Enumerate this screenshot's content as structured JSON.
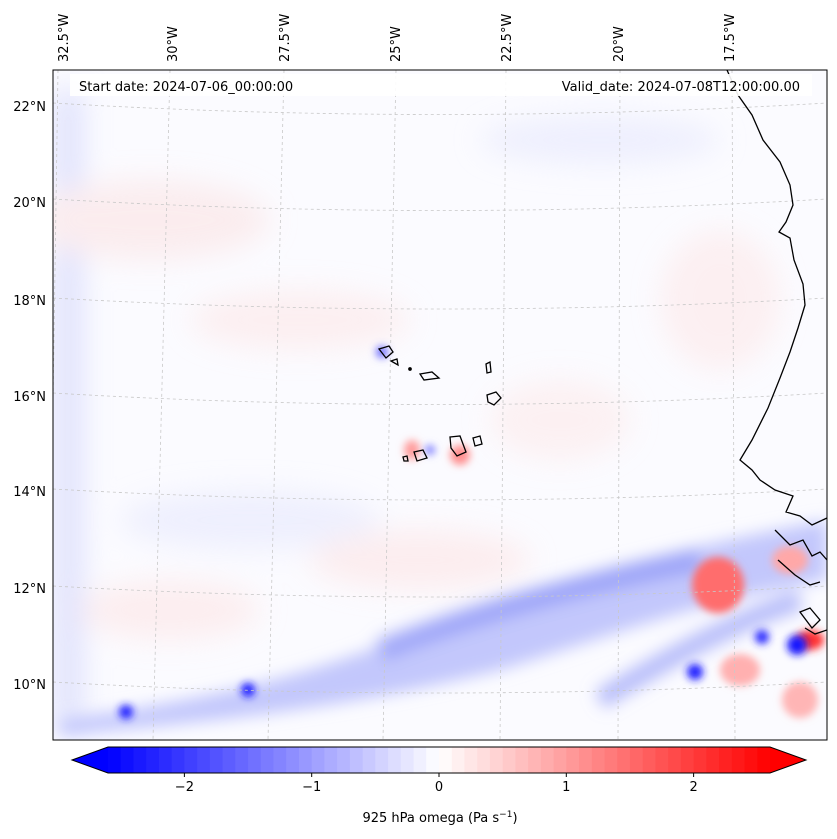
{
  "map": {
    "start_date_label": "Start date: 2024-07-06_00:00:00",
    "valid_date_label": "Valid_date: 2024-07-08T12:00:00.00",
    "lon_labels": [
      "32.5°W",
      "30°W",
      "27.5°W",
      "25°W",
      "22.5°W",
      "20°W",
      "17.5°W"
    ],
    "lat_labels": [
      "22°N",
      "20°N",
      "18°N",
      "16°N",
      "14°N",
      "12°N",
      "10°N"
    ]
  },
  "colorbar": {
    "tick_labels": [
      "−2",
      "−1",
      "0",
      "1",
      "2"
    ],
    "tick_values": [
      -2,
      -1,
      0,
      1,
      2
    ],
    "range": [
      -2.6,
      2.6
    ],
    "label_main": "925 hPa omega (Pa s",
    "label_sup": "−1",
    "label_close": ")",
    "colors": {
      "negative": "#0000ff",
      "zero": "#ffffff",
      "positive": "#ff0000"
    }
  },
  "colors": {
    "coastline": "#000000",
    "gridline": "#c8c8c8",
    "background_tint": "#fbfbff"
  }
}
